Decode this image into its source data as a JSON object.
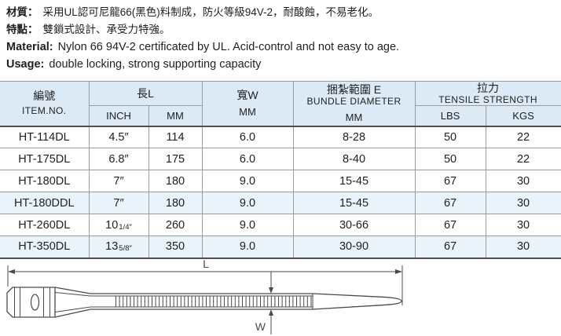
{
  "intro": {
    "material_zh_label": "材質：",
    "material_zh": "采用UL認可尼龍66(黑色)料制成，防火等級94V-2，耐酸蝕，不易老化。",
    "feature_zh_label": "特點：",
    "feature_zh": "雙鎖式設計、承受力特強。",
    "material_en_label": "Material:",
    "material_en": "Nylon 66 94V-2 certificated by UL. Acid-control and not easy to age.",
    "usage_en_label": "Usage:",
    "usage_en": "double locking, strong supporting capacity"
  },
  "table": {
    "header": {
      "item_zh": "編號",
      "item_en": "ITEM.NO.",
      "length_zh": "長L",
      "inch": "INCH",
      "mm": "MM",
      "width_zh": "寬W",
      "width_unit": "MM",
      "bundle_zh": "捆紮範圍 E",
      "bundle_en": "BUNDLE DIAMETER",
      "bundle_unit": "MM",
      "tensile_zh": "拉力",
      "tensile_en": "TENSILE STRENGTH",
      "lbs": "LBS",
      "kgs": "KGS"
    },
    "rows": [
      {
        "item": "HT-114DL",
        "inch": "4.5″",
        "inch_small": "",
        "mm": "114",
        "width_mm": "6.0",
        "bundle_mm": "8-28",
        "lbs": "50",
        "kgs": "22",
        "shaded": false
      },
      {
        "item": "HT-175DL",
        "inch": "6.8″",
        "inch_small": "",
        "mm": "175",
        "width_mm": "6.0",
        "bundle_mm": "8-40",
        "lbs": "50",
        "kgs": "22",
        "shaded": false
      },
      {
        "item": "HT-180DL",
        "inch": "7″",
        "inch_small": "",
        "mm": "180",
        "width_mm": "9.0",
        "bundle_mm": "15-45",
        "lbs": "67",
        "kgs": "30",
        "shaded": false
      },
      {
        "item": "HT-180DDL",
        "inch": "7″",
        "inch_small": "",
        "mm": "180",
        "width_mm": "9.0",
        "bundle_mm": "15-45",
        "lbs": "67",
        "kgs": "30",
        "shaded": true
      },
      {
        "item": "HT-260DL",
        "inch": "10",
        "inch_small": "1/4″",
        "mm": "260",
        "width_mm": "9.0",
        "bundle_mm": "30-66",
        "lbs": "67",
        "kgs": "30",
        "shaded": false
      },
      {
        "item": "HT-350DL",
        "inch": "13",
        "inch_small": "5/8″",
        "mm": "350",
        "width_mm": "9.0",
        "bundle_mm": "30-90",
        "lbs": "67",
        "kgs": "30",
        "shaded": true
      }
    ]
  },
  "diagram": {
    "length_label": "L",
    "width_label": "W"
  },
  "colors": {
    "header_bg": "#dbeaf5",
    "shaded_row_bg": "#e8f3fa",
    "border": "#9b9b9b",
    "heavy_border": "#4f4f4f",
    "line": "#4a4a4a",
    "text": "#1f1f1f"
  }
}
